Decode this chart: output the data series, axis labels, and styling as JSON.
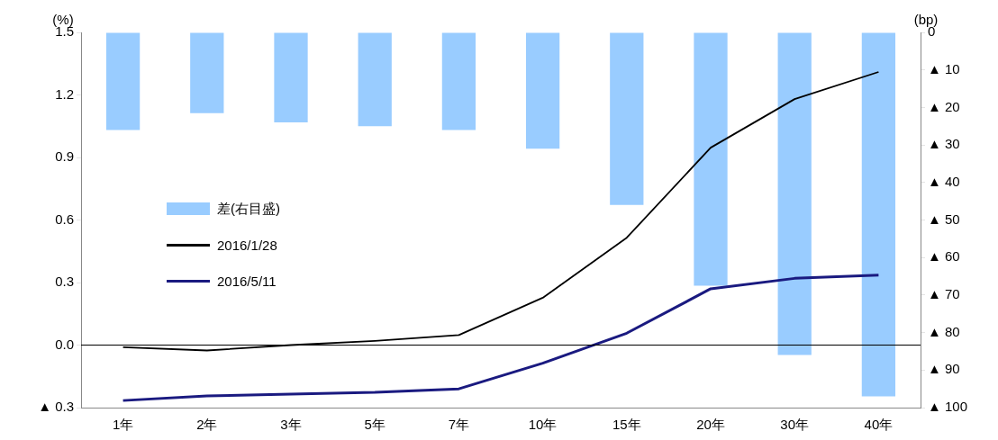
{
  "chart_data": {
    "type": "line",
    "ylabel": "(%)",
    "y2label": "(bp)",
    "categories": [
      "1年",
      "2年",
      "3年",
      "5年",
      "7年",
      "10年",
      "15年",
      "20年",
      "30年",
      "40年"
    ],
    "series": [
      {
        "name": "差(右目盛)",
        "type": "bar",
        "axis": "y2",
        "color": "#99ccff",
        "values": [
          -26,
          -21.5,
          -24,
          -25,
          -26,
          -31,
          -46,
          -67.5,
          -86,
          -97
        ]
      },
      {
        "name": "2016/1/28",
        "color": "#000000",
        "values": [
          -0.01,
          -0.026,
          0.0,
          0.02,
          0.048,
          0.227,
          0.515,
          0.947,
          1.18,
          1.31
        ]
      },
      {
        "name": "2016/5/11",
        "color": "#1a1a80",
        "values": [
          -0.266,
          -0.244,
          -0.235,
          -0.227,
          -0.21,
          -0.087,
          0.057,
          0.27,
          0.32,
          0.336
        ]
      }
    ],
    "ylim": [
      -0.3,
      1.5
    ],
    "yticks": [
      {
        "value": -0.3,
        "label": "▲ 0.3"
      },
      {
        "value": 0,
        "label": "0.0"
      },
      {
        "value": 0.3,
        "label": "0.3"
      },
      {
        "value": 0.6,
        "label": "0.6"
      },
      {
        "value": 0.9,
        "label": "0.9"
      },
      {
        "value": 1.2,
        "label": "1.2"
      },
      {
        "value": 1.5,
        "label": "1.5"
      }
    ],
    "y2lim": [
      -100,
      0
    ],
    "y2ticks": [
      {
        "value": -100,
        "label": "▲ 100"
      },
      {
        "value": -90,
        "label": "▲ 90"
      },
      {
        "value": -80,
        "label": "▲ 80"
      },
      {
        "value": -70,
        "label": "▲ 70"
      },
      {
        "value": -60,
        "label": "▲ 60"
      },
      {
        "value": -50,
        "label": "▲ 50"
      },
      {
        "value": -40,
        "label": "▲ 40"
      },
      {
        "value": -30,
        "label": "▲ 30"
      },
      {
        "value": -20,
        "label": "▲ 20"
      },
      {
        "value": -10,
        "label": "▲ 10"
      },
      0
    ],
    "ref_lines": [
      {
        "axis": "y",
        "value": 0,
        "color": "#000000"
      }
    ],
    "grid": false,
    "legend": "left",
    "marker": "none",
    "line_style": "solid"
  }
}
